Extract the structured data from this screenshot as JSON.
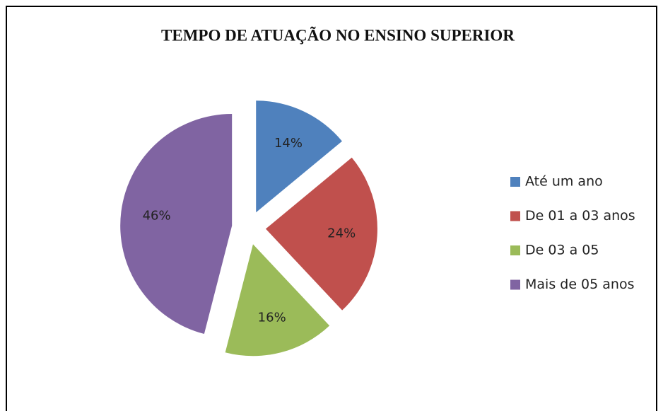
{
  "chart_data": {
    "type": "pie",
    "title": "TEMPO DE ATUAÇÃO NO ENSINO SUPERIOR",
    "categories": [
      "Até um ano",
      "De 01 a 03 anos",
      "De 03 a 05",
      "Mais de 05 anos"
    ],
    "values": [
      14,
      24,
      16,
      46
    ],
    "value_labels": [
      "14%",
      "24%",
      "16%",
      "46%"
    ],
    "colors": [
      "#4f81bd",
      "#c0504d",
      "#9bbb59",
      "#8064a2"
    ],
    "legend": "right"
  }
}
